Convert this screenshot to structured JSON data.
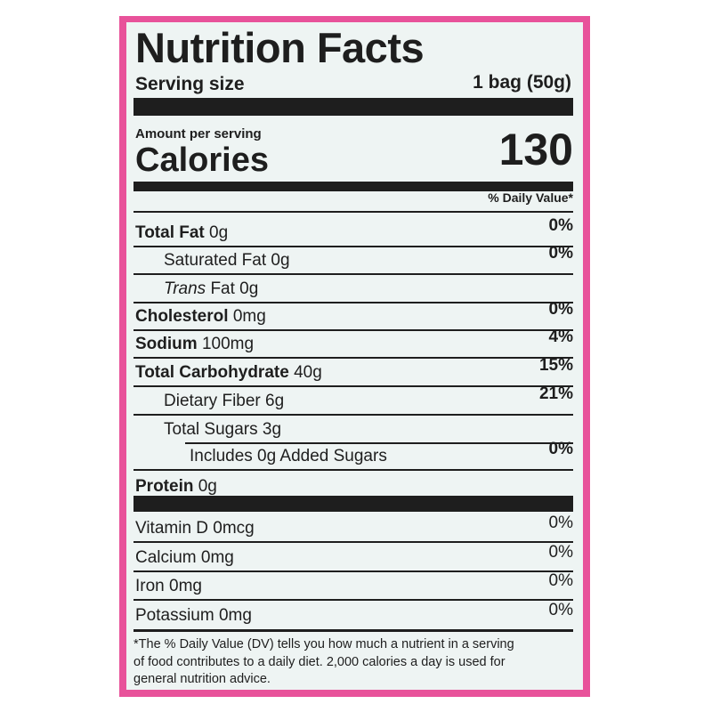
{
  "label": {
    "title": "Nutrition Facts",
    "serving_size_label": "Serving size",
    "serving_size_value": "1 bag (50g)",
    "amount_per_serving": "Amount per serving",
    "calories_label": "Calories",
    "calories_value": "130",
    "daily_value_header": "% Daily Value*",
    "nutrients": [
      {
        "name": "Total Fat",
        "amount": "0g",
        "dv": "0%"
      },
      {
        "name": "Saturated Fat",
        "amount": "0g",
        "dv": "0%"
      },
      {
        "name": "Trans",
        "amount": "Fat 0g"
      },
      {
        "name": "Cholesterol",
        "amount": "0mg",
        "dv": "0%"
      },
      {
        "name": "Sodium",
        "amount": "100mg",
        "dv": "4%"
      },
      {
        "name": "Total Carbohydrate",
        "amount": "40g",
        "dv": "15%"
      },
      {
        "name": "Dietary Fiber",
        "amount": "6g",
        "dv": "21%"
      },
      {
        "name": "Total Sugars",
        "amount": "3g"
      },
      {
        "name": "Includes 0g Added Sugars",
        "dv": "0%"
      },
      {
        "name": "Protein",
        "amount": "0g"
      }
    ],
    "vitamins": [
      {
        "name": "Vitamin D 0mcg",
        "dv": "0%"
      },
      {
        "name": "Calcium 0mg",
        "dv": "0%"
      },
      {
        "name": "Iron 0mg",
        "dv": "0%"
      },
      {
        "name": "Potassium 0mg",
        "dv": "0%"
      }
    ],
    "footnote": [
      "*The % Daily Value (DV) tells you how much a nutrient in a serving",
      "of food contributes to a daily diet. 2,000 calories a day is used for",
      "general nutrition advice."
    ]
  }
}
